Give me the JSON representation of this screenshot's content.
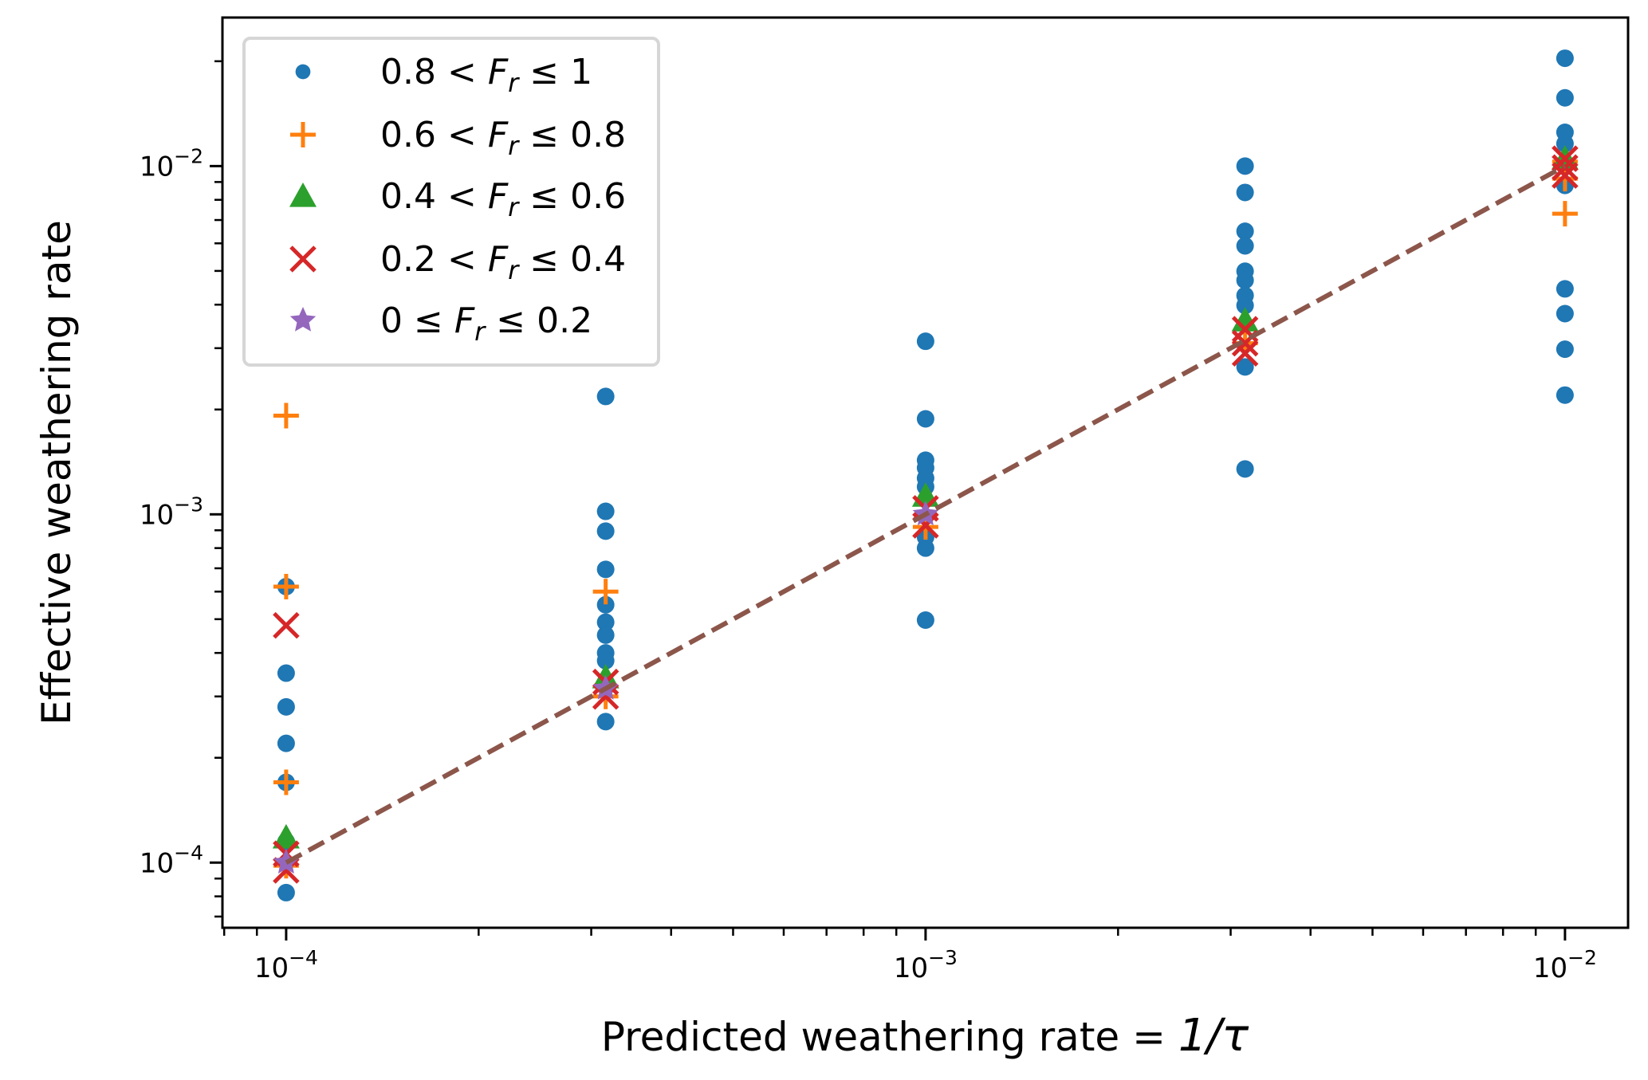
{
  "chart_data": {
    "type": "scatter",
    "title": "",
    "xlabel": "Predicted weathering rate = 1/τ",
    "xlabel_main": "Predicted weathering rate = ",
    "xlabel_math": "1/τ",
    "ylabel": "Effective weathering rate",
    "xscale": "log",
    "yscale": "log",
    "xlim": [
      7.95e-05,
      0.01255
    ],
    "ylim": [
      6.5e-05,
      0.0267
    ],
    "grid": false,
    "legend_position": "top-left",
    "x_ticks": [
      {
        "value": 0.0001,
        "base": "10",
        "exp": "−4"
      },
      {
        "value": 0.001,
        "base": "10",
        "exp": "−3"
      },
      {
        "value": 0.01,
        "base": "10",
        "exp": "−2"
      }
    ],
    "y_ticks": [
      {
        "value": 0.0001,
        "base": "10",
        "exp": "−4"
      },
      {
        "value": 0.001,
        "base": "10",
        "exp": "−3"
      },
      {
        "value": 0.01,
        "base": "10",
        "exp": "−2"
      }
    ],
    "series": [
      {
        "name": "0.8 < F_r ≤ 1",
        "label_parts": [
          "0.8 < ",
          "F",
          "r",
          " ≤ 1"
        ],
        "marker": "circle",
        "color": "#1f77b4",
        "points": [
          [
            0.0001,
            0.00062
          ],
          [
            0.0001,
            0.00035
          ],
          [
            0.0001,
            0.00028
          ],
          [
            0.0001,
            0.00022
          ],
          [
            0.0001,
            0.00017
          ],
          [
            0.0001,
            0.000115
          ],
          [
            0.0001,
            8.2e-05
          ],
          [
            0.000316,
            0.00218
          ],
          [
            0.000316,
            0.00102
          ],
          [
            0.000316,
            0.000895
          ],
          [
            0.000316,
            0.000695
          ],
          [
            0.000316,
            0.00055
          ],
          [
            0.000316,
            0.00049
          ],
          [
            0.000316,
            0.00045
          ],
          [
            0.000316,
            0.0004
          ],
          [
            0.000316,
            0.00038
          ],
          [
            0.000316,
            0.000254
          ],
          [
            0.001,
            0.00314
          ],
          [
            0.001,
            0.00188
          ],
          [
            0.001,
            0.00143
          ],
          [
            0.001,
            0.00136
          ],
          [
            0.001,
            0.00127
          ],
          [
            0.001,
            0.0012
          ],
          [
            0.001,
            0.00086
          ],
          [
            0.001,
            0.0008
          ],
          [
            0.001,
            0.000497
          ],
          [
            0.00316,
            0.01
          ],
          [
            0.00316,
            0.0084
          ],
          [
            0.00316,
            0.0065
          ],
          [
            0.00316,
            0.0059
          ],
          [
            0.00316,
            0.00499
          ],
          [
            0.00316,
            0.0047
          ],
          [
            0.00316,
            0.00425
          ],
          [
            0.00316,
            0.00398
          ],
          [
            0.00316,
            0.00265
          ],
          [
            0.00316,
            0.00135
          ],
          [
            0.01,
            0.0204
          ],
          [
            0.01,
            0.0157
          ],
          [
            0.01,
            0.0125
          ],
          [
            0.01,
            0.0116
          ],
          [
            0.01,
            0.0088
          ],
          [
            0.01,
            0.00444
          ],
          [
            0.01,
            0.00377
          ],
          [
            0.01,
            0.00298
          ],
          [
            0.01,
            0.0022
          ]
        ]
      },
      {
        "name": "0.6 < F_r ≤ 0.8",
        "label_parts": [
          "0.6 < ",
          "F",
          "r",
          " ≤ 0.8"
        ],
        "marker": "plus",
        "color": "#ff7f0e",
        "points": [
          [
            0.0001,
            0.00192
          ],
          [
            0.0001,
            0.00062
          ],
          [
            0.0001,
            0.00017
          ],
          [
            0.0001,
            9.8e-05
          ],
          [
            0.000316,
            0.0006
          ],
          [
            0.000316,
            0.0003
          ],
          [
            0.001,
            0.00092
          ],
          [
            0.00316,
            0.0031
          ],
          [
            0.01,
            0.0103
          ],
          [
            0.01,
            0.0092
          ],
          [
            0.01,
            0.0073
          ]
        ]
      },
      {
        "name": "0.4 < F_r ≤ 0.6",
        "label_parts": [
          "0.4 < ",
          "F",
          "r",
          " ≤ 0.6"
        ],
        "marker": "triangle",
        "color": "#2ca02c",
        "points": [
          [
            0.0001,
            0.000118
          ],
          [
            0.000316,
            0.00034
          ],
          [
            0.001,
            0.00113
          ],
          [
            0.00316,
            0.0036
          ],
          [
            0.01,
            0.0105
          ]
        ]
      },
      {
        "name": "0.2 < F_r ≤ 0.4",
        "label_parts": [
          "0.2 < ",
          "F",
          "r",
          " ≤ 0.4"
        ],
        "marker": "x",
        "color": "#d62728",
        "points": [
          [
            0.0001,
            0.00048
          ],
          [
            0.0001,
            0.000106
          ],
          [
            0.0001,
            9.5e-05
          ],
          [
            0.000316,
            0.00033
          ],
          [
            0.000316,
            0.0003
          ],
          [
            0.001,
            0.00104
          ],
          [
            0.001,
            0.00093
          ],
          [
            0.00316,
            0.0034
          ],
          [
            0.00316,
            0.0031
          ],
          [
            0.00316,
            0.0029
          ],
          [
            0.01,
            0.0105
          ],
          [
            0.01,
            0.0099
          ],
          [
            0.01,
            0.0094
          ]
        ]
      },
      {
        "name": "0 ≤ F_r ≤ 0.2",
        "label_parts": [
          "0 ≤ ",
          "F",
          "r",
          " ≤ 0.2"
        ],
        "marker": "star",
        "color": "#9467bd",
        "points": [
          [
            0.0001,
            0.0001
          ],
          [
            0.000316,
            0.000316
          ],
          [
            0.001,
            0.001
          ]
        ]
      }
    ],
    "reference_line": {
      "name": "y = x",
      "style": "dashed",
      "color": "#8c564b",
      "x": [
        0.0001,
        0.01
      ],
      "y": [
        0.0001,
        0.01
      ]
    }
  }
}
